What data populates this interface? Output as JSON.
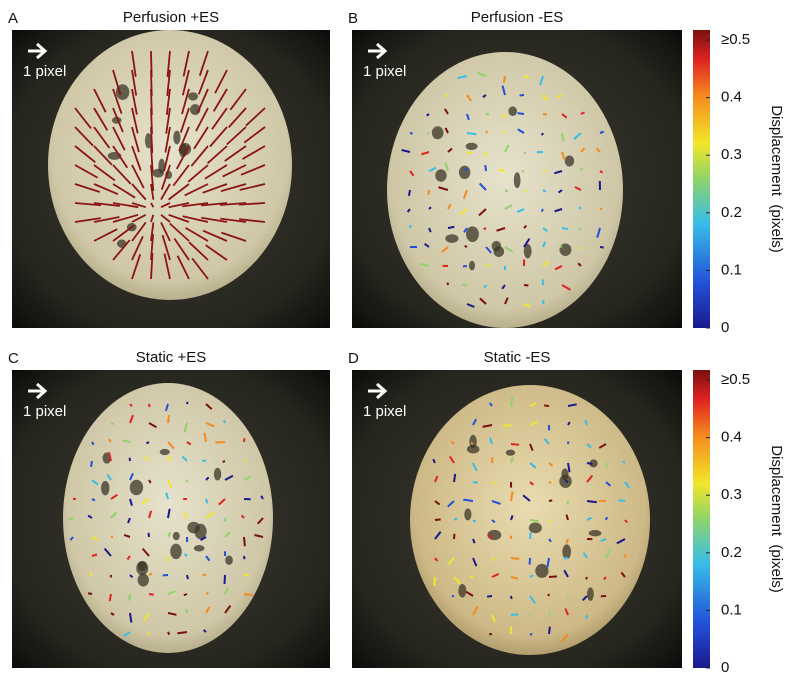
{
  "panels": [
    {
      "letter": "A",
      "title": "Perfusion +ES",
      "scale_label": "1 pixel"
    },
    {
      "letter": "B",
      "title": "Perfusion -ES",
      "scale_label": "1 pixel"
    },
    {
      "letter": "C",
      "title": "Static +ES",
      "scale_label": "1 pixel"
    },
    {
      "letter": "D",
      "title": "Static -ES",
      "scale_label": "1 pixel"
    }
  ],
  "colorbars": [
    {
      "ticks": [
        {
          "value": 0.5,
          "label": "≥0.5"
        },
        0.4,
        0.3,
        0.2,
        0.1,
        0
      ],
      "label": "Displacement  (pixels)"
    },
    {
      "ticks": [
        {
          "value": 0.5,
          "label": "≥0.5"
        },
        0.4,
        0.3,
        0.2,
        0.1,
        0
      ],
      "label": "Displacement  (pixels)"
    }
  ]
}
